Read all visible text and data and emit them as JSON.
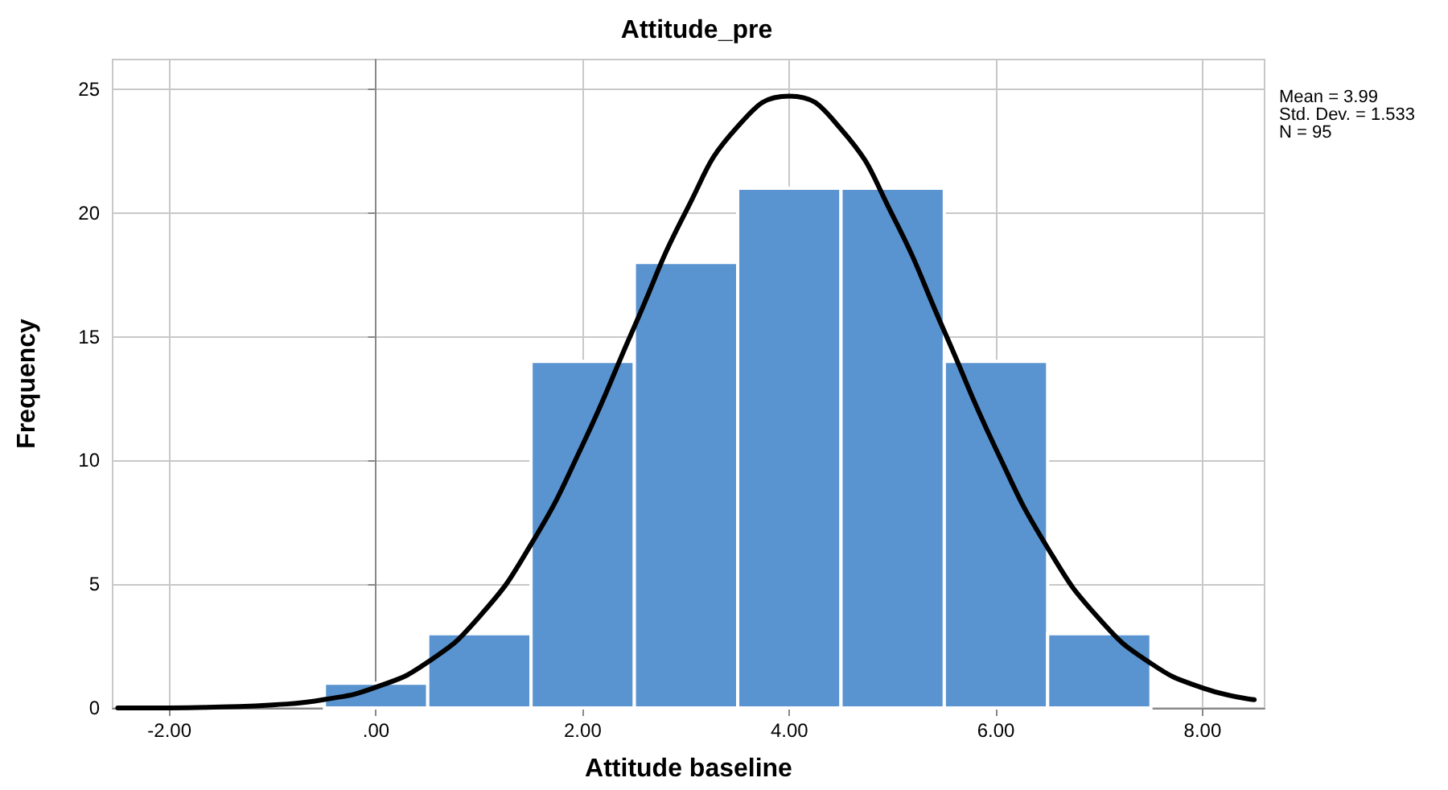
{
  "chart_data": {
    "type": "histogram",
    "title": "Attitude_pre",
    "xlabel": "Attitude baseline",
    "ylabel": "Frequency",
    "bins": [
      -0.5,
      0.5,
      1.5,
      2.5,
      3.5,
      4.5,
      5.5,
      6.5,
      7.5
    ],
    "values": [
      1,
      3,
      14,
      18,
      21,
      21,
      14,
      3
    ],
    "color": "#5a94d0",
    "series": [
      {
        "type": "line",
        "color": "#000000",
        "x": [
          -2.5,
          -2,
          -1.5,
          -1,
          -0.5,
          0,
          0.5,
          1,
          1.5,
          2,
          2.5,
          3,
          3.5,
          4,
          4.5,
          5,
          5.5,
          6,
          6.5,
          7,
          7.5,
          8,
          8.5
        ],
        "values": [
          0.0,
          0.0,
          0.04,
          0.12,
          0.34,
          0.84,
          1.85,
          3.69,
          6.61,
          10.64,
          15.41,
          20.07,
          23.49,
          24.72,
          23.39,
          19.9,
          15.22,
          10.46,
          6.47,
          3.6,
          1.8,
          0.81,
          0.33
        ]
      }
    ],
    "xlim": [
      -2.55,
      8.6
    ],
    "xticks": [
      {
        "value": -2,
        "label": "-2.00"
      },
      {
        "value": 0,
        "label": ".00"
      },
      {
        "value": 2,
        "label": "2.00"
      },
      {
        "value": 4,
        "label": "4.00"
      },
      {
        "value": 6,
        "label": "6.00"
      },
      {
        "value": 8,
        "label": "8.00"
      }
    ],
    "ylim": [
      0,
      26.2
    ],
    "yticks": [
      0,
      5,
      10,
      15,
      20,
      25
    ],
    "grid": true,
    "annotations": [
      "Mean = 3.99",
      "Std. Dev. = 1.533",
      "N = 95"
    ]
  }
}
